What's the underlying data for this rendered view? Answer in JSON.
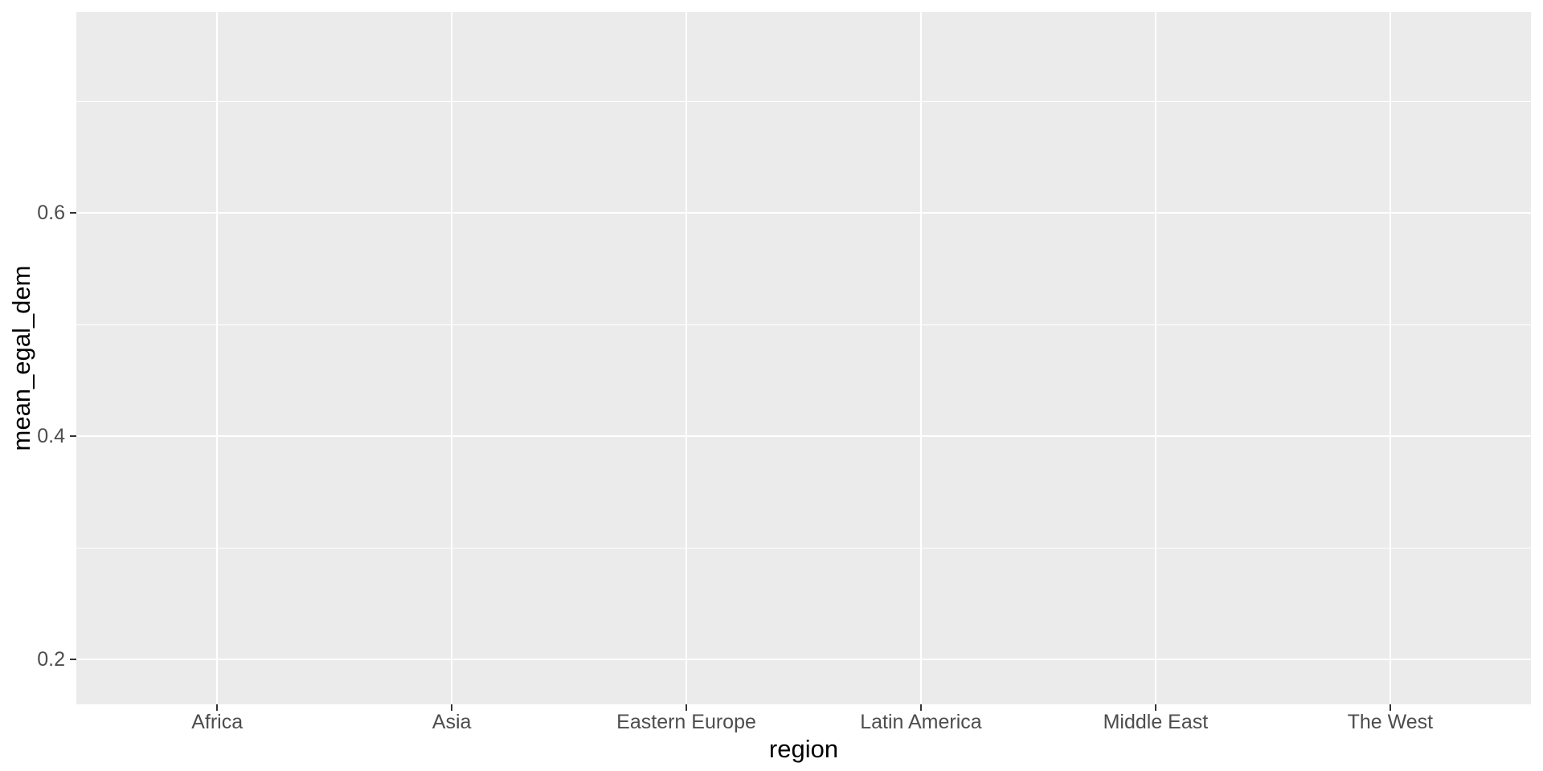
{
  "chart_data": {
    "type": "scatter",
    "title": "",
    "xlabel": "region",
    "ylabel": "mean_egal_dem",
    "categories": [
      "Africa",
      "Asia",
      "Eastern Europe",
      "Latin America",
      "Middle East",
      "The West"
    ],
    "series": [],
    "points_rendered": "none (empty panel, no visible data geoms)",
    "ylim": [
      0.16,
      0.78
    ],
    "y_major_ticks": [
      {
        "value": 0.2,
        "label": "0.2"
      },
      {
        "value": 0.4,
        "label": "0.4"
      },
      {
        "value": 0.6,
        "label": "0.6"
      }
    ],
    "y_minor_gridlines": [
      0.3,
      0.5,
      0.7
    ],
    "grid": "horizontal major+minor white lines; vertical major white lines at category centers",
    "legend_position": "none",
    "colors": {
      "panel_background": "#EBEBEB",
      "gridline": "#FFFFFF",
      "tick_mark": "#333333",
      "tick_label": "#4D4D4D",
      "axis_title": "#000000",
      "plot_background": "#FFFFFF"
    }
  }
}
